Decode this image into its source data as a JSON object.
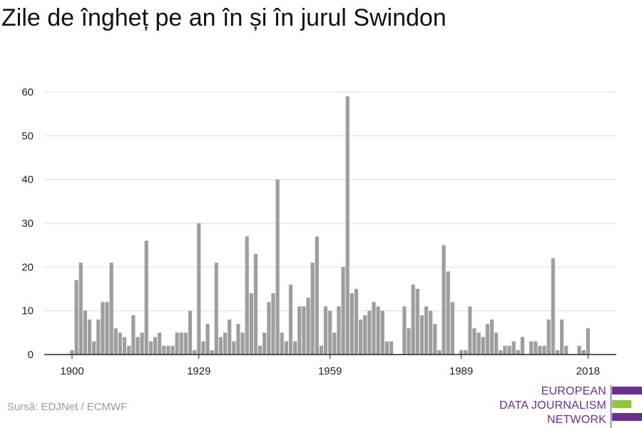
{
  "title": "Zile de îngheț pe an în și în jurul Swindon",
  "source": "Sursă: EDJNet / ECMWF",
  "logo": {
    "line1": "EUROPEAN",
    "line2": "DATA JOURNALISM",
    "line3": "NETWORK"
  },
  "colors": {
    "bar": "#9e9e9e",
    "grid": "#dcdcdc",
    "axis": "#222222",
    "logo_purple": "#6b2e91",
    "logo_green": "#8ccc2e"
  },
  "chart_data": {
    "type": "bar",
    "title": "Zile de îngheț pe an în și în jurul Swindon",
    "x_start": 1900,
    "x_end": 2020,
    "xticks": [
      1900,
      1929,
      1959,
      1989,
      2018
    ],
    "yticks": [
      0,
      10,
      20,
      30,
      40,
      50,
      60
    ],
    "ylim": [
      0,
      62
    ],
    "grid": true,
    "values": [
      1,
      17,
      21,
      10,
      8,
      3,
      8,
      12,
      12,
      21,
      6,
      5,
      4,
      2,
      9,
      4,
      5,
      26,
      3,
      4,
      5,
      2,
      2,
      2,
      5,
      5,
      5,
      10,
      1,
      30,
      3,
      7,
      1,
      21,
      4,
      5,
      8,
      3,
      7,
      5,
      27,
      14,
      23,
      2,
      5,
      12,
      14,
      40,
      5,
      3,
      16,
      3,
      11,
      11,
      13,
      21,
      27,
      2,
      11,
      10,
      5,
      11,
      20,
      59,
      14,
      15,
      8,
      9,
      10,
      12,
      11,
      10,
      3,
      3,
      0,
      0,
      11,
      6,
      16,
      15,
      9,
      11,
      10,
      7,
      1,
      25,
      19,
      12,
      0,
      1,
      1,
      11,
      6,
      5,
      4,
      7,
      8,
      5,
      1,
      2,
      2,
      3,
      1,
      4,
      0,
      3,
      3,
      2,
      2,
      8,
      22,
      1,
      8,
      2,
      0,
      0,
      2,
      1,
      6,
      0
    ]
  }
}
